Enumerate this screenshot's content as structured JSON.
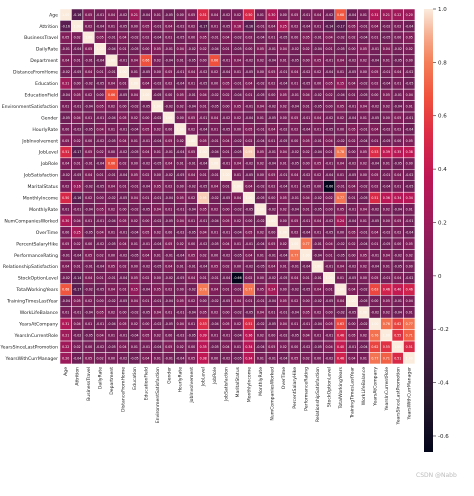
{
  "chart_data": {
    "type": "heatmap",
    "title": "",
    "xlabel": "",
    "ylabel": "",
    "labels": [
      "Age",
      "Attrition",
      "BusinessTravel",
      "DailyRate",
      "Department",
      "DistanceFromHome",
      "Education",
      "EducationField",
      "EnvironmentSatisfaction",
      "Gender",
      "HourlyRate",
      "JobInvolvement",
      "JobLevel",
      "JobRole",
      "JobSatisfaction",
      "MaritalStatus",
      "MonthlyIncome",
      "MonthlyRate",
      "NumCompaniesWorked",
      "OverTime",
      "PercentSalaryHike",
      "PerformanceRating",
      "RelationshipSatisfaction",
      "StockOptionLevel",
      "TotalWorkingYears",
      "TrainingTimesLastYear",
      "WorkLifeBalance",
      "YearsAtCompany",
      "YearsInCurrentRole",
      "YearsSinceLastPromotion",
      "YearsWithCurrManager"
    ],
    "vmin": -0.66,
    "vmax": 1.0,
    "colorbar_ticks": [
      "1.0",
      "0.8",
      "0.6",
      "0.4",
      "0.2",
      "0",
      "-0.2",
      "-0.4",
      "-0.6"
    ],
    "correlations": [
      {
        "a": "Age",
        "b": "Attrition",
        "value": -0.16
      },
      {
        "a": "Age",
        "b": "JobLevel",
        "value": 0.51
      },
      {
        "a": "Age",
        "b": "MonthlyIncome",
        "value": 0.5
      },
      {
        "a": "Age",
        "b": "NumCompaniesWorked",
        "value": 0.3
      },
      {
        "a": "Age",
        "b": "TotalWorkingYears",
        "value": 0.68
      },
      {
        "a": "Age",
        "b": "YearsAtCompany",
        "value": 0.31
      },
      {
        "a": "Age",
        "b": "YearsInCurrentRole",
        "value": 0.21
      },
      {
        "a": "Age",
        "b": "YearsSinceLastPromotion",
        "value": 0.22
      },
      {
        "a": "Age",
        "b": "YearsWithCurrManager",
        "value": 0.2
      },
      {
        "a": "Department",
        "b": "EducationField",
        "value": 0.66
      },
      {
        "a": "JobLevel",
        "b": "MonthlyIncome",
        "value": 0.95
      },
      {
        "a": "JobLevel",
        "b": "TotalWorkingYears",
        "value": 0.78
      },
      {
        "a": "JobLevel",
        "b": "YearsAtCompany",
        "value": 0.53
      },
      {
        "a": "JobLevel",
        "b": "YearsInCurrentRole",
        "value": 0.39
      },
      {
        "a": "JobLevel",
        "b": "YearsSinceLastPromotion",
        "value": 0.35
      },
      {
        "a": "JobLevel",
        "b": "YearsWithCurrManager",
        "value": 0.38
      },
      {
        "a": "MaritalStatus",
        "b": "StockOptionLevel",
        "value": -0.66
      },
      {
        "a": "MonthlyIncome",
        "b": "TotalWorkingYears",
        "value": 0.77
      },
      {
        "a": "MonthlyIncome",
        "b": "YearsAtCompany",
        "value": 0.51
      },
      {
        "a": "MonthlyIncome",
        "b": "YearsInCurrentRole",
        "value": 0.36
      },
      {
        "a": "MonthlyIncome",
        "b": "YearsSinceLastPromotion",
        "value": 0.34
      },
      {
        "a": "MonthlyIncome",
        "b": "YearsWithCurrManager",
        "value": 0.34
      },
      {
        "a": "NumCompaniesWorked",
        "b": "TotalWorkingYears",
        "value": 0.24
      },
      {
        "a": "PercentSalaryHike",
        "b": "PerformanceRating",
        "value": 0.77
      },
      {
        "a": "TotalWorkingYears",
        "b": "YearsAtCompany",
        "value": 0.63
      },
      {
        "a": "TotalWorkingYears",
        "b": "YearsInCurrentRole",
        "value": 0.46
      },
      {
        "a": "TotalWorkingYears",
        "b": "YearsSinceLastPromotion",
        "value": 0.4
      },
      {
        "a": "TotalWorkingYears",
        "b": "YearsWithCurrManager",
        "value": 0.46
      },
      {
        "a": "YearsAtCompany",
        "b": "YearsInCurrentRole",
        "value": 0.76
      },
      {
        "a": "YearsAtCompany",
        "b": "YearsSinceLastPromotion",
        "value": 0.62
      },
      {
        "a": "YearsAtCompany",
        "b": "YearsWithCurrManager",
        "value": 0.77
      },
      {
        "a": "YearsInCurrentRole",
        "b": "YearsSinceLastPromotion",
        "value": 0.55
      },
      {
        "a": "YearsInCurrentRole",
        "b": "YearsWithCurrManager",
        "value": 0.71
      },
      {
        "a": "YearsSinceLastPromotion",
        "b": "YearsWithCurrManager",
        "value": 0.51
      },
      {
        "a": "Attrition",
        "b": "OverTime",
        "value": 0.25
      },
      {
        "a": "Attrition",
        "b": "MaritalStatus",
        "value": 0.16
      },
      {
        "a": "Attrition",
        "b": "TotalWorkingYears",
        "value": -0.17
      },
      {
        "a": "Attrition",
        "b": "JobLevel",
        "value": -0.17
      },
      {
        "a": "Attrition",
        "b": "MonthlyIncome",
        "value": -0.16
      },
      {
        "a": "Attrition",
        "b": "StockOptionLevel",
        "value": -0.14
      },
      {
        "a": "Age",
        "b": "Education",
        "value": 0.21
      },
      {
        "a": "Education",
        "b": "TotalWorkingYears",
        "value": 0.15
      },
      {
        "a": "MaritalStatus",
        "b": "Attrition",
        "value": 0.16
      },
      {
        "a": "JobRole",
        "b": "Department",
        "value": 0.66
      }
    ]
  },
  "watermark": "CSDN @Nabb"
}
